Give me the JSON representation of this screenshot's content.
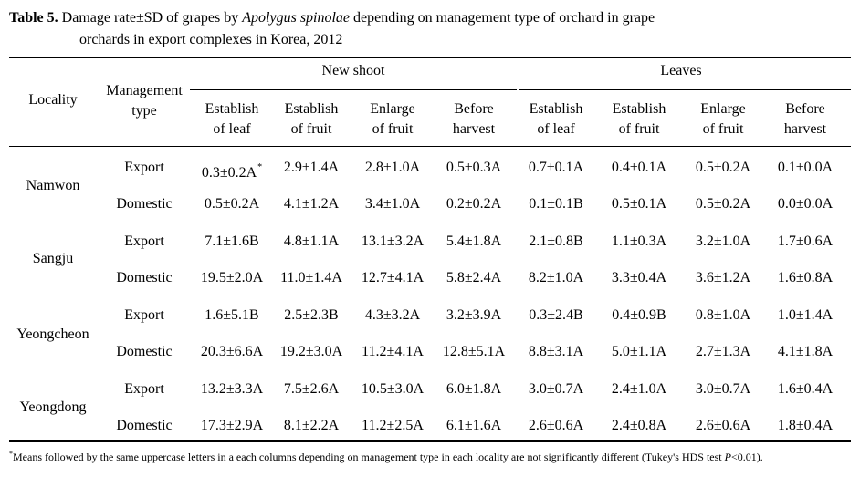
{
  "caption": {
    "label": "Table 5.",
    "text_before_species": "Damage rate±SD of grapes by ",
    "species": "Apolygus spinolae",
    "text_after_species": " depending on management type of orchard in grape",
    "line2": "orchards in export complexes in Korea, 2012"
  },
  "header": {
    "locality": "Locality",
    "management_line1": "Management",
    "management_line2": "type",
    "groups": [
      "New shoot",
      "Leaves"
    ],
    "stages": [
      [
        "Establish",
        "of leaf"
      ],
      [
        "Establish",
        "of fruit"
      ],
      [
        "Enlarge",
        "of fruit"
      ],
      [
        "Before",
        "harvest"
      ],
      [
        "Establish",
        "of leaf"
      ],
      [
        "Establish",
        "of fruit"
      ],
      [
        "Enlarge",
        "of fruit"
      ],
      [
        "Before",
        "harvest"
      ]
    ]
  },
  "rows": [
    {
      "locality": "Namwon",
      "type": "Export",
      "values": [
        "0.3±0.2A",
        "2.9±1.4A",
        "2.8±1.0A",
        "0.5±0.3A",
        "0.7±0.1A",
        "0.4±0.1A",
        "0.5±0.2A",
        "0.1±0.0A"
      ],
      "mark": "*"
    },
    {
      "locality": "Namwon",
      "type": "Domestic",
      "values": [
        "0.5±0.2A",
        "4.1±1.2A",
        "3.4±1.0A",
        "0.2±0.2A",
        "0.1±0.1B",
        "0.5±0.1A",
        "0.5±0.2A",
        "0.0±0.0A"
      ]
    },
    {
      "locality": "Sangju",
      "type": "Export",
      "values": [
        "7.1±1.6B",
        "4.8±1.1A",
        "13.1±3.2A",
        "5.4±1.8A",
        "2.1±0.8B",
        "1.1±0.3A",
        "3.2±1.0A",
        "1.7±0.6A"
      ]
    },
    {
      "locality": "Sangju",
      "type": "Domestic",
      "values": [
        "19.5±2.0A",
        "11.0±1.4A",
        "12.7±4.1A",
        "5.8±2.4A",
        "8.2±1.0A",
        "3.3±0.4A",
        "3.6±1.2A",
        "1.6±0.8A"
      ]
    },
    {
      "locality": "Yeongcheon",
      "type": "Export",
      "values": [
        "1.6±5.1B",
        "2.5±2.3B",
        "4.3±3.2A",
        "3.2±3.9A",
        "0.3±2.4B",
        "0.4±0.9B",
        "0.8±1.0A",
        "1.0±1.4A"
      ]
    },
    {
      "locality": "Yeongcheon",
      "type": "Domestic",
      "values": [
        "20.3±6.6A",
        "19.2±3.0A",
        "11.2±4.1A",
        "12.8±5.1A",
        "8.8±3.1A",
        "5.0±1.1A",
        "2.7±1.3A",
        "4.1±1.8A"
      ]
    },
    {
      "locality": "Yeongdong",
      "type": "Export",
      "values": [
        "13.2±3.3A",
        "7.5±2.6A",
        "10.5±3.0A",
        "6.0±1.8A",
        "3.0±0.7A",
        "2.4±1.0A",
        "3.0±0.7A",
        "1.6±0.4A"
      ]
    },
    {
      "locality": "Yeongdong",
      "type": "Domestic",
      "values": [
        "17.3±2.9A",
        "8.1±2.2A",
        "11.2±2.5A",
        "6.1±1.6A",
        "2.6±0.6A",
        "2.4±0.8A",
        "2.6±0.6A",
        "1.8±0.4A"
      ]
    }
  ],
  "localities": [
    "Namwon",
    "Sangju",
    "Yeongcheon",
    "Yeongdong"
  ],
  "footnote": {
    "mark": "*",
    "text_before_p": "Means followed by the same uppercase letters in a each columns depending on management type in each locality are not significantly different (Tukey's HDS test ",
    "p": "P",
    "text_after_p": "<0.01)."
  }
}
